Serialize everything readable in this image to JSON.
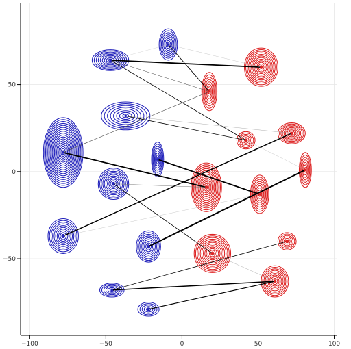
{
  "chart_data": {
    "type": "contour",
    "xlim": [
      -106,
      102
    ],
    "ylim": [
      -94,
      97
    ],
    "x_ticks": [
      -100,
      -50,
      0,
      50,
      100
    ],
    "x_tick_labels": [
      "−100",
      "−50",
      "0",
      "50",
      "100"
    ],
    "y_ticks": [
      -50,
      0,
      50
    ],
    "y_tick_labels": [
      "−50",
      "0",
      "50"
    ],
    "grid": true,
    "series": [
      {
        "color": "#2222bb",
        "clusters": [
          {
            "x": -78,
            "y": 11,
            "sx": 13,
            "sy": 20,
            "levels": 18
          },
          {
            "x": -47,
            "y": 64,
            "sx": 12,
            "sy": 6,
            "levels": 9
          },
          {
            "x": -9,
            "y": 73,
            "sx": 6,
            "sy": 9,
            "levels": 8
          },
          {
            "x": -37,
            "y": 32,
            "sx": 16,
            "sy": 8,
            "levels": 8
          },
          {
            "x": -45,
            "y": -7,
            "sx": 10,
            "sy": 9,
            "levels": 10
          },
          {
            "x": -16,
            "y": 7,
            "sx": 4,
            "sy": 10,
            "levels": 8
          },
          {
            "x": -78,
            "y": -37,
            "sx": 10,
            "sy": 10,
            "levels": 10
          },
          {
            "x": -22,
            "y": -43,
            "sx": 8,
            "sy": 9,
            "levels": 9
          },
          {
            "x": -46,
            "y": -68,
            "sx": 8,
            "sy": 4,
            "levels": 6
          },
          {
            "x": -22,
            "y": -79,
            "sx": 7,
            "sy": 4,
            "levels": 5
          }
        ]
      },
      {
        "color": "#dd2222",
        "clusters": [
          {
            "x": 52,
            "y": 60,
            "sx": 11,
            "sy": 11,
            "levels": 12
          },
          {
            "x": 18,
            "y": 46,
            "sx": 5,
            "sy": 11,
            "levels": 8
          },
          {
            "x": 42,
            "y": 18,
            "sx": 6,
            "sy": 5,
            "levels": 6
          },
          {
            "x": 72,
            "y": 22,
            "sx": 9,
            "sy": 6,
            "levels": 9
          },
          {
            "x": 81,
            "y": 1,
            "sx": 4,
            "sy": 10,
            "levels": 7
          },
          {
            "x": 16,
            "y": -9,
            "sx": 10,
            "sy": 14,
            "levels": 13
          },
          {
            "x": 51,
            "y": -13,
            "sx": 6,
            "sy": 11,
            "levels": 9
          },
          {
            "x": 20,
            "y": -47,
            "sx": 12,
            "sy": 11,
            "levels": 12
          },
          {
            "x": 69,
            "y": -40,
            "sx": 6,
            "sy": 5,
            "levels": 6
          },
          {
            "x": 61,
            "y": -63,
            "sx": 9,
            "sy": 9,
            "levels": 10
          }
        ]
      }
    ],
    "segments": [
      {
        "x1": -47,
        "y1": 64,
        "x2": 52,
        "y2": 60,
        "w": 1.8,
        "c": "#000000"
      },
      {
        "x1": -47,
        "y1": 64,
        "x2": 42,
        "y2": 18,
        "w": 0.8,
        "c": "#000000"
      },
      {
        "x1": -47,
        "y1": 64,
        "x2": 18,
        "y2": 46,
        "w": 0.5,
        "c": "#444444"
      },
      {
        "x1": -9,
        "y1": 73,
        "x2": 18,
        "y2": 46,
        "w": 0.9,
        "c": "#000000"
      },
      {
        "x1": -9,
        "y1": 73,
        "x2": 52,
        "y2": 60,
        "w": 0.4,
        "c": "#bbbbbb"
      },
      {
        "x1": -47,
        "y1": 64,
        "x2": -9,
        "y2": 73,
        "w": 0.4,
        "c": "#cccccc"
      },
      {
        "x1": -78,
        "y1": 11,
        "x2": 18,
        "y2": 46,
        "w": 0.6,
        "c": "#444444"
      },
      {
        "x1": -78,
        "y1": 11,
        "x2": 16,
        "y2": -9,
        "w": 1.8,
        "c": "#000000"
      },
      {
        "x1": -37,
        "y1": 32,
        "x2": 42,
        "y2": 18,
        "w": 0.8,
        "c": "#000000"
      },
      {
        "x1": -37,
        "y1": 32,
        "x2": 72,
        "y2": 22,
        "w": 0.4,
        "c": "#999999"
      },
      {
        "x1": -16,
        "y1": 7,
        "x2": 51,
        "y2": -13,
        "w": 1.8,
        "c": "#000000"
      },
      {
        "x1": -45,
        "y1": -7,
        "x2": 20,
        "y2": -47,
        "w": 0.8,
        "c": "#000000"
      },
      {
        "x1": -45,
        "y1": -7,
        "x2": 16,
        "y2": -9,
        "w": 0.5,
        "c": "#777777"
      },
      {
        "x1": -78,
        "y1": -37,
        "x2": 72,
        "y2": 22,
        "w": 1.5,
        "c": "#000000"
      },
      {
        "x1": -78,
        "y1": -37,
        "x2": 51,
        "y2": -13,
        "w": 0.4,
        "c": "#bbbbbb"
      },
      {
        "x1": -22,
        "y1": -43,
        "x2": 81,
        "y2": 1,
        "w": 2.0,
        "c": "#000000"
      },
      {
        "x1": -46,
        "y1": -68,
        "x2": 69,
        "y2": -40,
        "w": 0.8,
        "c": "#000000"
      },
      {
        "x1": -46,
        "y1": -68,
        "x2": 61,
        "y2": -63,
        "w": 1.5,
        "c": "#000000"
      },
      {
        "x1": -22,
        "y1": -79,
        "x2": 61,
        "y2": -63,
        "w": 1.2,
        "c": "#000000"
      },
      {
        "x1": 20,
        "y1": -47,
        "x2": 61,
        "y2": -63,
        "w": 0.4,
        "c": "#999999"
      },
      {
        "x1": 42,
        "y1": 18,
        "x2": 81,
        "y2": 1,
        "w": 0.4,
        "c": "#bbbbbb"
      }
    ]
  }
}
